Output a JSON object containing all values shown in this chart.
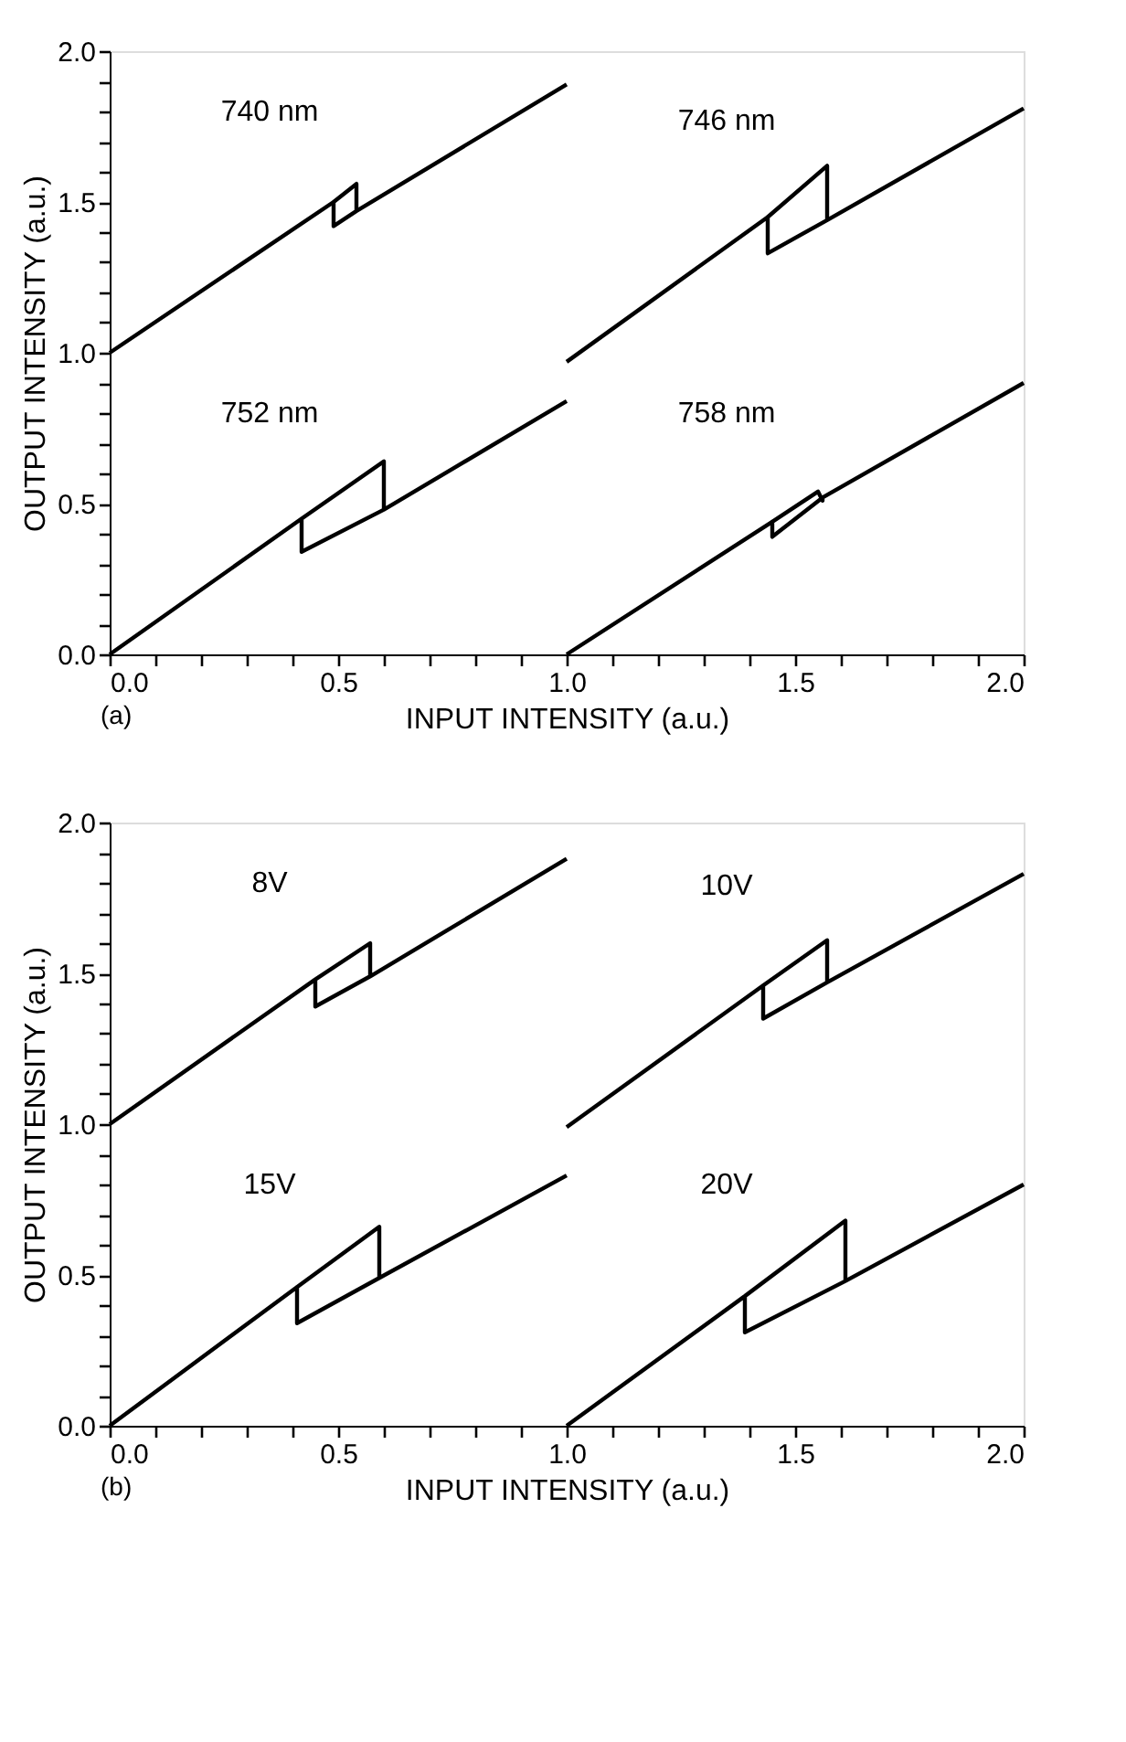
{
  "chart_data": [
    {
      "type": "line",
      "xlabel": "INPUT INTENSITY (a.u.)",
      "ylabel": "OUTPUT INTENSITY (a.u.)",
      "annotations": [
        "(a)"
      ],
      "legend": false,
      "grid": false,
      "marker": "none",
      "line_style": "solid",
      "xlim": [
        0,
        2
      ],
      "ylim": [
        0,
        2
      ],
      "xticks": [
        {
          "value": 0,
          "label": "0.0"
        },
        {
          "value": 0.1,
          "label": null
        },
        {
          "value": 0.2,
          "label": null
        },
        {
          "value": 0.3,
          "label": null
        },
        {
          "value": 0.4,
          "label": null
        },
        {
          "value": 0.5,
          "label": "0.5"
        },
        {
          "value": 0.6,
          "label": null
        },
        {
          "value": 0.7,
          "label": null
        },
        {
          "value": 0.8,
          "label": null
        },
        {
          "value": 0.9,
          "label": null
        },
        {
          "value": 1,
          "label": "1.0"
        },
        {
          "value": 1.1,
          "label": null
        },
        {
          "value": 1.2,
          "label": null
        },
        {
          "value": 1.3,
          "label": null
        },
        {
          "value": 1.4,
          "label": null
        },
        {
          "value": 1.5,
          "label": "1.5"
        },
        {
          "value": 1.6,
          "label": null
        },
        {
          "value": 1.7,
          "label": null
        },
        {
          "value": 1.8,
          "label": null
        },
        {
          "value": 1.9,
          "label": null
        },
        {
          "value": 2,
          "label": "2.0"
        }
      ],
      "yticks": [
        {
          "value": 0,
          "label": "0.0"
        },
        {
          "value": 0.1,
          "label": null
        },
        {
          "value": 0.2,
          "label": null
        },
        {
          "value": 0.3,
          "label": null
        },
        {
          "value": 0.4,
          "label": null
        },
        {
          "value": 0.5,
          "label": "0.5"
        },
        {
          "value": 0.6,
          "label": null
        },
        {
          "value": 0.7,
          "label": null
        },
        {
          "value": 0.8,
          "label": null
        },
        {
          "value": 0.9,
          "label": null
        },
        {
          "value": 1,
          "label": "1.0"
        },
        {
          "value": 1.1,
          "label": null
        },
        {
          "value": 1.2,
          "label": null
        },
        {
          "value": 1.3,
          "label": null
        },
        {
          "value": 1.4,
          "label": null
        },
        {
          "value": 1.5,
          "label": "1.5"
        },
        {
          "value": 1.6,
          "label": null
        },
        {
          "value": 1.7,
          "label": null
        },
        {
          "value": 1.8,
          "label": null
        },
        {
          "value": 1.9,
          "label": null
        },
        {
          "value": 2,
          "label": "2.0"
        }
      ],
      "series": [
        {
          "name": "740 nm",
          "color": "#000000",
          "x": [
            0,
            0.49,
            0.54,
            0.54,
            0.49,
            0.49,
            0.49,
            0.54,
            1.0
          ],
          "values": [
            1.0,
            1.5,
            1.56,
            1.47,
            1.42,
            1.5,
            1.42,
            1.47,
            1.89
          ]
        },
        {
          "name": "746 nm",
          "color": "#000000",
          "x": [
            1.0,
            1.44,
            1.57,
            1.57,
            1.44,
            1.44,
            1.44,
            1.57,
            2.0
          ],
          "values": [
            0.97,
            1.45,
            1.62,
            1.44,
            1.33,
            1.45,
            1.33,
            1.44,
            1.81
          ]
        },
        {
          "name": "752 nm",
          "color": "#000000",
          "x": [
            0,
            0.42,
            0.6,
            0.6,
            0.42,
            0.42,
            0.42,
            0.6,
            1.0
          ],
          "values": [
            0,
            0.45,
            0.64,
            0.48,
            0.34,
            0.45,
            0.34,
            0.48,
            0.84
          ]
        },
        {
          "name": "758 nm",
          "color": "#000000",
          "x": [
            1.0,
            1.45,
            1.55,
            1.56,
            1.56,
            1.45,
            1.45,
            1.45,
            1.56,
            2.0
          ],
          "values": [
            0,
            0.44,
            0.54,
            0.51,
            0.52,
            0.39,
            0.44,
            0.39,
            0.52,
            0.9
          ]
        }
      ]
    },
    {
      "type": "line",
      "xlabel": "INPUT INTENSITY (a.u.)",
      "ylabel": "OUTPUT INTENSITY (a.u.)",
      "annotations": [
        "(b)"
      ],
      "legend": false,
      "grid": false,
      "marker": "none",
      "line_style": "solid",
      "xlim": [
        0,
        2
      ],
      "ylim": [
        0,
        2
      ],
      "xticks": [
        {
          "value": 0,
          "label": "0.0"
        },
        {
          "value": 0.1,
          "label": null
        },
        {
          "value": 0.2,
          "label": null
        },
        {
          "value": 0.3,
          "label": null
        },
        {
          "value": 0.4,
          "label": null
        },
        {
          "value": 0.5,
          "label": "0.5"
        },
        {
          "value": 0.6,
          "label": null
        },
        {
          "value": 0.7,
          "label": null
        },
        {
          "value": 0.8,
          "label": null
        },
        {
          "value": 0.9,
          "label": null
        },
        {
          "value": 1,
          "label": "1.0"
        },
        {
          "value": 1.1,
          "label": null
        },
        {
          "value": 1.2,
          "label": null
        },
        {
          "value": 1.3,
          "label": null
        },
        {
          "value": 1.4,
          "label": null
        },
        {
          "value": 1.5,
          "label": "1.5"
        },
        {
          "value": 1.6,
          "label": null
        },
        {
          "value": 1.7,
          "label": null
        },
        {
          "value": 1.8,
          "label": null
        },
        {
          "value": 1.9,
          "label": null
        },
        {
          "value": 2,
          "label": "2.0"
        }
      ],
      "yticks": [
        {
          "value": 0,
          "label": "0.0"
        },
        {
          "value": 0.1,
          "label": null
        },
        {
          "value": 0.2,
          "label": null
        },
        {
          "value": 0.3,
          "label": null
        },
        {
          "value": 0.4,
          "label": null
        },
        {
          "value": 0.5,
          "label": "0.5"
        },
        {
          "value": 0.6,
          "label": null
        },
        {
          "value": 0.7,
          "label": null
        },
        {
          "value": 0.8,
          "label": null
        },
        {
          "value": 0.9,
          "label": null
        },
        {
          "value": 1,
          "label": "1.0"
        },
        {
          "value": 1.1,
          "label": null
        },
        {
          "value": 1.2,
          "label": null
        },
        {
          "value": 1.3,
          "label": null
        },
        {
          "value": 1.4,
          "label": null
        },
        {
          "value": 1.5,
          "label": "1.5"
        },
        {
          "value": 1.6,
          "label": null
        },
        {
          "value": 1.7,
          "label": null
        },
        {
          "value": 1.8,
          "label": null
        },
        {
          "value": 1.9,
          "label": null
        },
        {
          "value": 2,
          "label": "2.0"
        }
      ],
      "series": [
        {
          "name": "8V",
          "color": "#000000",
          "x": [
            0,
            0.45,
            0.57,
            0.57,
            0.45,
            0.45,
            0.45,
            0.57,
            1.0
          ],
          "values": [
            1.0,
            1.48,
            1.6,
            1.49,
            1.39,
            1.48,
            1.39,
            1.49,
            1.88
          ]
        },
        {
          "name": "10V",
          "color": "#000000",
          "x": [
            1.0,
            1.43,
            1.57,
            1.57,
            1.43,
            1.43,
            1.43,
            1.57,
            2.0
          ],
          "values": [
            0.99,
            1.46,
            1.61,
            1.47,
            1.35,
            1.46,
            1.35,
            1.47,
            1.83
          ]
        },
        {
          "name": "15V",
          "color": "#000000",
          "x": [
            0,
            0.41,
            0.59,
            0.59,
            0.41,
            0.41,
            0.41,
            0.59,
            1.0
          ],
          "values": [
            0,
            0.46,
            0.66,
            0.49,
            0.34,
            0.46,
            0.34,
            0.49,
            0.83
          ]
        },
        {
          "name": "20V",
          "color": "#000000",
          "x": [
            1.0,
            1.39,
            1.61,
            1.61,
            1.39,
            1.39,
            1.39,
            1.61,
            2.0
          ],
          "values": [
            0,
            0.43,
            0.68,
            0.48,
            0.31,
            0.43,
            0.31,
            0.48,
            0.8
          ]
        }
      ]
    }
  ]
}
